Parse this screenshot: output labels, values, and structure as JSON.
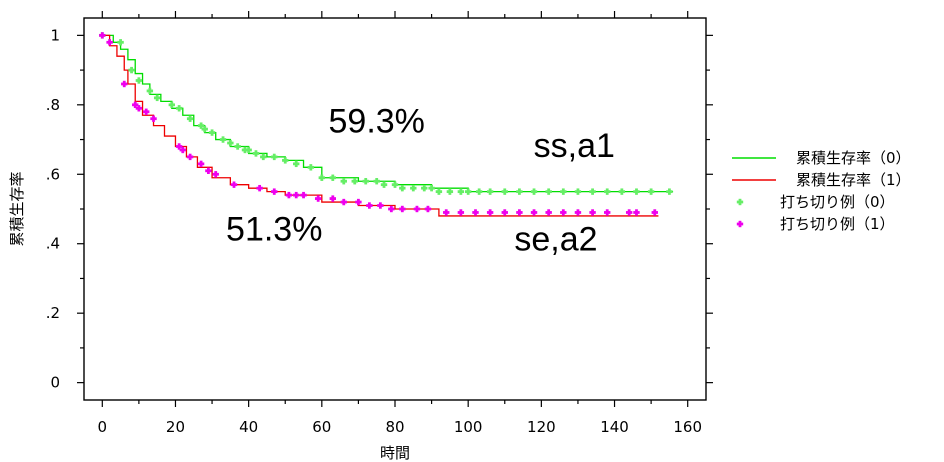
{
  "chart_data": {
    "type": "line",
    "title": "",
    "xlabel": "時間",
    "ylabel": "累積生存率",
    "xlim": [
      -5,
      165
    ],
    "ylim": [
      -0.05,
      1.05
    ],
    "x_ticks": [
      0,
      20,
      40,
      60,
      80,
      100,
      120,
      140,
      160
    ],
    "x_tick_labels": [
      "0",
      "20",
      "40",
      "60",
      "80",
      "100",
      "120",
      "140",
      "160"
    ],
    "y_ticks": [
      0,
      0.2,
      0.4,
      0.6,
      0.8,
      1.0
    ],
    "y_tick_labels": [
      "0",
      ".2",
      ".4",
      ".6",
      ".8",
      "1"
    ],
    "grid": false,
    "legend_position": "right",
    "series": [
      {
        "name": "累積生存率（0）",
        "kind": "step",
        "color": "#00dd00",
        "x": [
          0,
          3,
          5,
          7,
          9,
          11,
          13,
          16,
          19,
          22,
          25,
          28,
          31,
          35,
          40,
          45,
          50,
          55,
          60,
          70,
          80,
          90,
          100,
          156
        ],
        "y": [
          1.0,
          0.98,
          0.96,
          0.93,
          0.89,
          0.86,
          0.83,
          0.81,
          0.79,
          0.77,
          0.74,
          0.72,
          0.7,
          0.68,
          0.66,
          0.65,
          0.64,
          0.62,
          0.59,
          0.58,
          0.57,
          0.56,
          0.55,
          0.55
        ]
      },
      {
        "name": "累積生存率（1）",
        "kind": "step",
        "color": "#ee0000",
        "x": [
          0,
          2,
          4,
          6,
          7,
          9,
          11,
          14,
          17,
          20,
          23,
          26,
          30,
          35,
          40,
          45,
          50,
          60,
          70,
          80,
          92,
          100,
          152
        ],
        "y": [
          1.0,
          0.97,
          0.94,
          0.9,
          0.86,
          0.81,
          0.77,
          0.74,
          0.71,
          0.68,
          0.65,
          0.62,
          0.59,
          0.57,
          0.56,
          0.55,
          0.54,
          0.52,
          0.51,
          0.5,
          0.48,
          0.48,
          0.48
        ]
      },
      {
        "name": "打ち切り例（0）",
        "kind": "censor",
        "color": "#66ee66",
        "x": [
          0,
          5,
          8,
          10,
          13,
          15,
          19,
          21,
          24,
          27,
          28,
          30,
          33,
          35,
          37,
          39,
          40,
          42,
          44,
          47,
          50,
          53,
          57,
          60,
          63,
          66,
          69,
          72,
          75,
          77,
          80,
          82,
          85,
          88,
          90,
          92,
          95,
          98,
          100,
          103,
          106,
          110,
          114,
          118,
          122,
          126,
          130,
          134,
          138,
          142,
          146,
          150,
          155
        ],
        "y": [
          1.0,
          0.98,
          0.9,
          0.87,
          0.84,
          0.82,
          0.8,
          0.79,
          0.76,
          0.74,
          0.73,
          0.72,
          0.7,
          0.69,
          0.68,
          0.67,
          0.67,
          0.66,
          0.65,
          0.65,
          0.64,
          0.63,
          0.62,
          0.59,
          0.59,
          0.58,
          0.58,
          0.58,
          0.58,
          0.57,
          0.57,
          0.56,
          0.56,
          0.56,
          0.56,
          0.55,
          0.55,
          0.55,
          0.55,
          0.55,
          0.55,
          0.55,
          0.55,
          0.55,
          0.55,
          0.55,
          0.55,
          0.55,
          0.55,
          0.55,
          0.55,
          0.55,
          0.55
        ]
      },
      {
        "name": "打ち切り例（1）",
        "kind": "censor",
        "color": "#ee00ee",
        "x": [
          0,
          2,
          6,
          9,
          10,
          12,
          14,
          21,
          22,
          24,
          27,
          29,
          31,
          36,
          43,
          47,
          51,
          53,
          55,
          59,
          63,
          66,
          70,
          73,
          76,
          79,
          82,
          86,
          89,
          94,
          98,
          102,
          106,
          110,
          114,
          118,
          122,
          126,
          130,
          134,
          138,
          144,
          146,
          151
        ],
        "y": [
          1.0,
          0.98,
          0.86,
          0.8,
          0.79,
          0.78,
          0.76,
          0.68,
          0.67,
          0.65,
          0.63,
          0.61,
          0.6,
          0.57,
          0.56,
          0.55,
          0.54,
          0.54,
          0.54,
          0.53,
          0.53,
          0.52,
          0.52,
          0.51,
          0.51,
          0.5,
          0.5,
          0.5,
          0.5,
          0.49,
          0.49,
          0.49,
          0.49,
          0.49,
          0.49,
          0.49,
          0.49,
          0.49,
          0.49,
          0.49,
          0.49,
          0.49,
          0.49,
          0.49
        ]
      }
    ],
    "annotations": [
      {
        "text": "59.3%",
        "x": 75,
        "y": 0.72
      },
      {
        "text": "ss,a1",
        "x": 129,
        "y": 0.65
      },
      {
        "text": "51.3%",
        "x": 47,
        "y": 0.41
      },
      {
        "text": "se,a2",
        "x": 124,
        "y": 0.38
      }
    ]
  }
}
